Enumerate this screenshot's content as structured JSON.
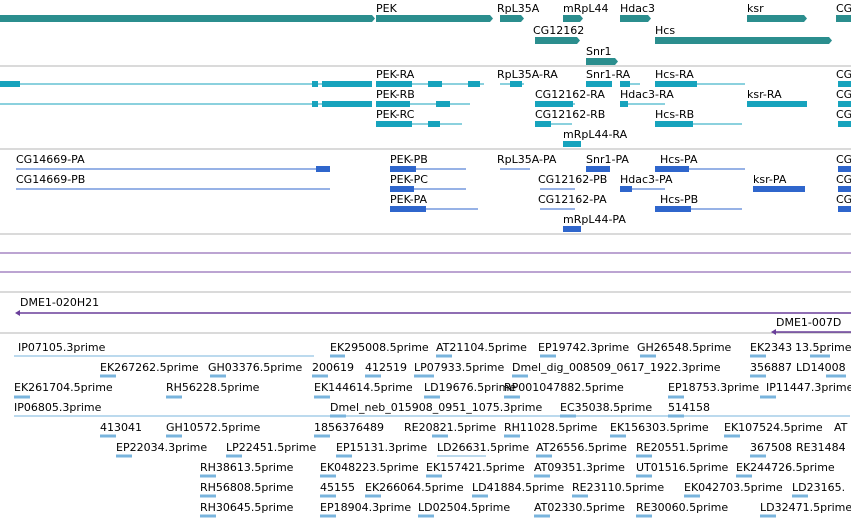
{
  "colors": {
    "gene": "#2b8e8e",
    "mrna": "#17a3bd",
    "cds": "#2f66cc",
    "est": "#79b4dd",
    "clone": "#6a3f9a",
    "track_line": "#7a4aa6",
    "separator": "#b4b4b4"
  },
  "tracks": {
    "genes": {
      "labels": [
        {
          "text": "PEK"
        },
        {
          "text": "RpL35A"
        },
        {
          "text": "mRpL44"
        },
        {
          "text": "Hdac3"
        },
        {
          "text": "ksr"
        },
        {
          "text": "CG"
        },
        {
          "text": "CG12162"
        },
        {
          "text": "Hcs"
        },
        {
          "text": "Snr1"
        }
      ]
    },
    "transcripts": {
      "labels": [
        {
          "text": "PEK-RA"
        },
        {
          "text": "RpL35A-RA"
        },
        {
          "text": "Snr1-RA"
        },
        {
          "text": "Hcs-RA"
        },
        {
          "text": "CG"
        },
        {
          "text": "PEK-RB"
        },
        {
          "text": "CG12162-RA"
        },
        {
          "text": "Hdac3-RA"
        },
        {
          "text": "ksr-RA"
        },
        {
          "text": "CG"
        },
        {
          "text": "PEK-RC"
        },
        {
          "text": "CG12162-RB"
        },
        {
          "text": "Hcs-RB"
        },
        {
          "text": "CG"
        },
        {
          "text": "mRpL44-RA"
        }
      ]
    },
    "proteins": {
      "labels": [
        {
          "text": "CG14669-PA"
        },
        {
          "text": "PEK-PB"
        },
        {
          "text": "RpL35A-PA"
        },
        {
          "text": "Snr1-PA"
        },
        {
          "text": "Hcs-PA"
        },
        {
          "text": "CG"
        },
        {
          "text": "CG14669-PB"
        },
        {
          "text": "PEK-PC"
        },
        {
          "text": "CG12162-PB"
        },
        {
          "text": "Hdac3-PA"
        },
        {
          "text": "ksr-PA"
        },
        {
          "text": "CG"
        },
        {
          "text": "PEK-PA"
        },
        {
          "text": "CG12162-PA"
        },
        {
          "text": "Hcs-PB"
        },
        {
          "text": "CG"
        },
        {
          "text": "mRpL44-PA"
        }
      ]
    },
    "clones": {
      "labels": [
        {
          "text": "DME1-020H21"
        },
        {
          "text": "DME1-007D"
        }
      ]
    },
    "ests": {
      "labels": [
        {
          "text": "IP07105.3prime"
        },
        {
          "text": "EK295008.5prime"
        },
        {
          "text": "AT21104.5prime"
        },
        {
          "text": "EP19742.3prime"
        },
        {
          "text": "GH26548.5prime"
        },
        {
          "text": "EK2343"
        },
        {
          "text": "13.5prime"
        },
        {
          "text": "EK267262.5prime"
        },
        {
          "text": "GH03376.5prime"
        },
        {
          "text": "200619"
        },
        {
          "text": "412519"
        },
        {
          "text": "LP07933.5prime"
        },
        {
          "text": "Dmel_dig_008509_0617_1922.3prime"
        },
        {
          "text": "356887"
        },
        {
          "text": "LD14008"
        },
        {
          "text": "EK261704.5prime"
        },
        {
          "text": "RH56228.5prime"
        },
        {
          "text": "EK144614.5prime"
        },
        {
          "text": "LD19676.5prime"
        },
        {
          "text": "RP001047882.5prime"
        },
        {
          "text": "EP18753.3prime"
        },
        {
          "text": "IP11447.3prime"
        },
        {
          "text": "IP06805.3prime"
        },
        {
          "text": "Dmel_neb_015908_0951_1075.3prime"
        },
        {
          "text": "EC35038.5prime"
        },
        {
          "text": "514158"
        },
        {
          "text": "413041"
        },
        {
          "text": "GH10572.5prime"
        },
        {
          "text": "1856376489"
        },
        {
          "text": "RE20821.5prime"
        },
        {
          "text": "RH11028.5prime"
        },
        {
          "text": "EK156303.5prime"
        },
        {
          "text": "EK107524.5prime"
        },
        {
          "text": "AT"
        },
        {
          "text": "EP22034.3prime"
        },
        {
          "text": "LP22451.5prime"
        },
        {
          "text": "EP15131.3prime"
        },
        {
          "text": "LD26631.5prime"
        },
        {
          "text": "AT26556.5prime"
        },
        {
          "text": "RE20551.5prime"
        },
        {
          "text": "367508"
        },
        {
          "text": "RE31484"
        },
        {
          "text": "RH38613.5prime"
        },
        {
          "text": "EK048223.5prime"
        },
        {
          "text": "EK157421.5prime"
        },
        {
          "text": "AT09351.3prime"
        },
        {
          "text": "UT01516.5prime"
        },
        {
          "text": "EK244726.5prime"
        },
        {
          "text": "RH56808.5prime"
        },
        {
          "text": "45155"
        },
        {
          "text": "EK266064.5prime"
        },
        {
          "text": "LD41884.5prime"
        },
        {
          "text": "RE23110.5prime"
        },
        {
          "text": "EK042703.5prime"
        },
        {
          "text": "LD23165."
        },
        {
          "text": "RH30645.5prime"
        },
        {
          "text": "EP18904.3prime"
        },
        {
          "text": "LD02504.5prime"
        },
        {
          "text": "AT02330.5prime"
        },
        {
          "text": "RE30060.5prime"
        },
        {
          "text": "LD32471.5prime"
        }
      ]
    }
  }
}
